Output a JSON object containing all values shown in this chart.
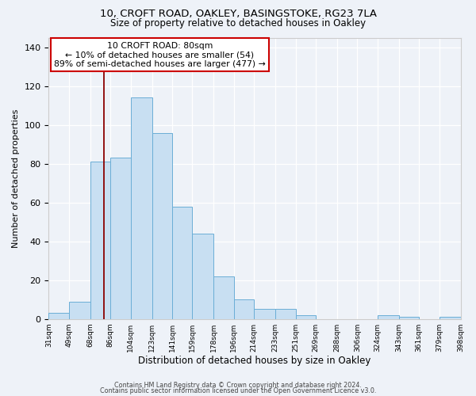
{
  "title1": "10, CROFT ROAD, OAKLEY, BASINGSTOKE, RG23 7LA",
  "title2": "Size of property relative to detached houses in Oakley",
  "xlabel": "Distribution of detached houses by size in Oakley",
  "ylabel": "Number of detached properties",
  "bin_edges": [
    31,
    49,
    68,
    86,
    104,
    123,
    141,
    159,
    178,
    196,
    214,
    233,
    251,
    269,
    288,
    306,
    324,
    343,
    361,
    379,
    398
  ],
  "counts": [
    3,
    9,
    81,
    83,
    114,
    96,
    58,
    44,
    22,
    10,
    5,
    5,
    2,
    0,
    0,
    0,
    2,
    1,
    0,
    1
  ],
  "bar_color": "#c8dff2",
  "bar_edgecolor": "#6baed6",
  "ylim": [
    0,
    145
  ],
  "yticks": [
    0,
    20,
    40,
    60,
    80,
    100,
    120,
    140
  ],
  "xtick_labels": [
    "31sqm",
    "49sqm",
    "68sqm",
    "86sqm",
    "104sqm",
    "123sqm",
    "141sqm",
    "159sqm",
    "178sqm",
    "196sqm",
    "214sqm",
    "233sqm",
    "251sqm",
    "269sqm",
    "288sqm",
    "306sqm",
    "324sqm",
    "343sqm",
    "361sqm",
    "379sqm",
    "398sqm"
  ],
  "vline_x": 80,
  "annotation_title": "10 CROFT ROAD: 80sqm",
  "annotation_line1": "← 10% of detached houses are smaller (54)",
  "annotation_line2": "89% of semi-detached houses are larger (477) →",
  "footer1": "Contains HM Land Registry data © Crown copyright and database right 2024.",
  "footer2": "Contains public sector information licensed under the Open Government Licence v3.0.",
  "background_color": "#eef2f8"
}
